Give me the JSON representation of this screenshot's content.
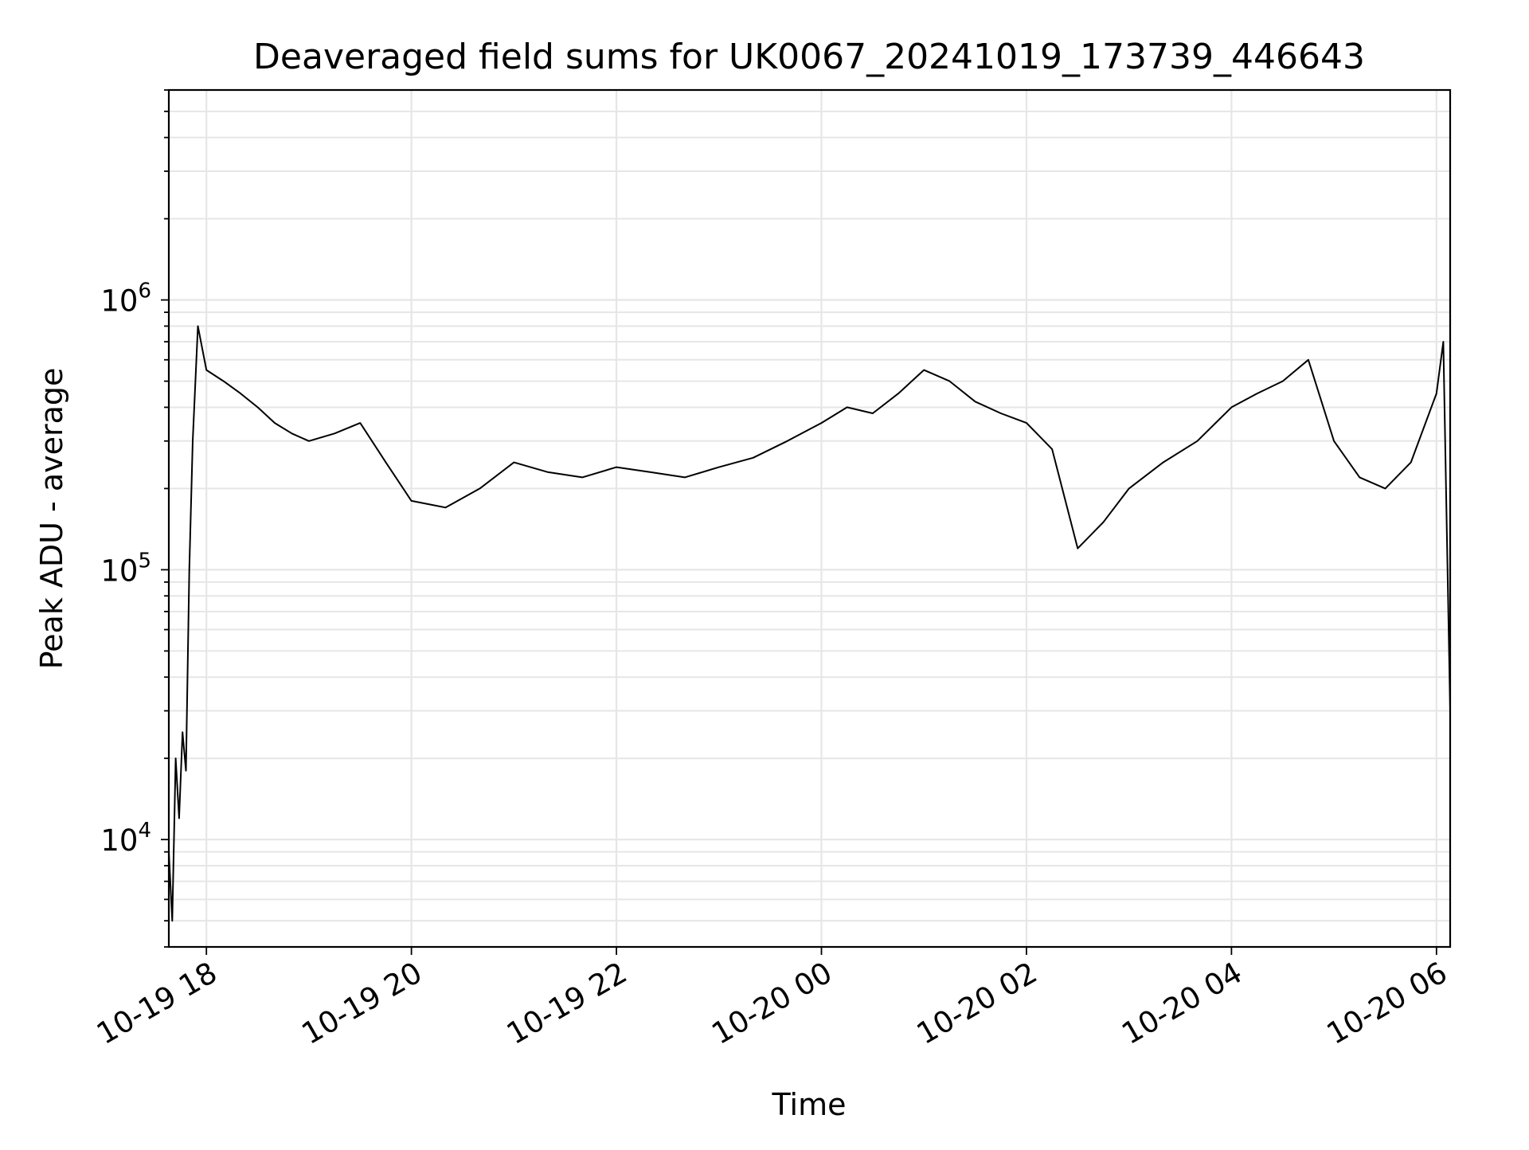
{
  "chart_data": {
    "type": "line",
    "title": "Deaveraged field sums for UK0067_20241019_173739_446643",
    "xlabel": "Time",
    "ylabel": "Peak ADU - average",
    "yscale": "log",
    "grid": true,
    "legend": "none",
    "line_color": "#000000",
    "grid_color": "#e6e6e6",
    "xlim": [
      "2024-10-19 17:38",
      "2024-10-20 06:08"
    ],
    "ylim": [
      4000,
      6000000
    ],
    "x_ticks": [
      "2024-10-19 18:00",
      "2024-10-19 20:00",
      "2024-10-19 22:00",
      "2024-10-20 00:00",
      "2024-10-20 02:00",
      "2024-10-20 04:00",
      "2024-10-20 06:00"
    ],
    "x_tick_labels": [
      "10-19 18",
      "10-19 20",
      "10-19 22",
      "10-20 00",
      "10-20 02",
      "10-20 04",
      "10-20 06"
    ],
    "y_ticks": [
      10000,
      100000,
      1000000
    ],
    "y_tick_labels": [
      {
        "base": "10",
        "exp": "4"
      },
      {
        "base": "10",
        "exp": "5"
      },
      {
        "base": "10",
        "exp": "6"
      }
    ],
    "series": [
      {
        "x": [
          "2024-10-19 17:38",
          "2024-10-19 17:40",
          "2024-10-19 17:42",
          "2024-10-19 17:44",
          "2024-10-19 17:46",
          "2024-10-19 17:48",
          "2024-10-19 17:50",
          "2024-10-19 17:52",
          "2024-10-19 17:55",
          "2024-10-19 18:00",
          "2024-10-19 18:10",
          "2024-10-19 18:20",
          "2024-10-19 18:30",
          "2024-10-19 18:40",
          "2024-10-19 18:50",
          "2024-10-19 19:00",
          "2024-10-19 19:15",
          "2024-10-19 19:30",
          "2024-10-19 19:45",
          "2024-10-19 20:00",
          "2024-10-19 20:20",
          "2024-10-19 20:40",
          "2024-10-19 21:00",
          "2024-10-19 21:20",
          "2024-10-19 21:40",
          "2024-10-19 22:00",
          "2024-10-19 22:20",
          "2024-10-19 22:40",
          "2024-10-19 23:00",
          "2024-10-19 23:20",
          "2024-10-19 23:40",
          "2024-10-20 00:00",
          "2024-10-20 00:15",
          "2024-10-20 00:30",
          "2024-10-20 00:45",
          "2024-10-20 01:00",
          "2024-10-20 01:15",
          "2024-10-20 01:30",
          "2024-10-20 01:45",
          "2024-10-20 02:00",
          "2024-10-20 02:15",
          "2024-10-20 02:30",
          "2024-10-20 02:45",
          "2024-10-20 03:00",
          "2024-10-20 03:20",
          "2024-10-20 03:40",
          "2024-10-20 04:00",
          "2024-10-20 04:15",
          "2024-10-20 04:30",
          "2024-10-20 04:45",
          "2024-10-20 05:00",
          "2024-10-20 05:15",
          "2024-10-20 05:30",
          "2024-10-20 05:45",
          "2024-10-20 06:00",
          "2024-10-20 06:04",
          "2024-10-20 06:08"
        ],
        "y": [
          9000,
          5000,
          20000,
          12000,
          25000,
          18000,
          100000,
          300000,
          800000,
          550000,
          500000,
          450000,
          400000,
          350000,
          320000,
          300000,
          320000,
          350000,
          250000,
          180000,
          170000,
          200000,
          250000,
          230000,
          220000,
          240000,
          230000,
          220000,
          240000,
          260000,
          300000,
          350000,
          400000,
          380000,
          450000,
          550000,
          500000,
          420000,
          380000,
          350000,
          280000,
          120000,
          150000,
          200000,
          250000,
          300000,
          400000,
          450000,
          500000,
          600000,
          300000,
          220000,
          200000,
          250000,
          450000,
          700000,
          30000
        ]
      }
    ]
  }
}
